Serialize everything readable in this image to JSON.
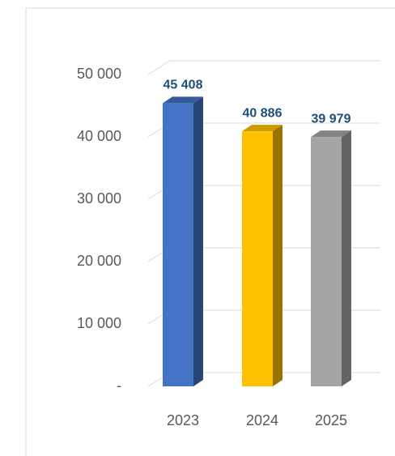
{
  "chart_data": {
    "type": "bar3d",
    "categories": [
      "2023",
      "2024",
      "2025"
    ],
    "values": [
      45408,
      40886,
      39979
    ],
    "value_labels": [
      "45 408",
      "40 886",
      "39 979"
    ],
    "colors": [
      "#4472c4",
      "#ffc000",
      "#a5a5a5"
    ],
    "value_label_color": "#1f4e79",
    "ylim": [
      0,
      50000
    ],
    "yticks": [
      {
        "value": 0,
        "label": "-"
      },
      {
        "value": 10000,
        "label": "10 000"
      },
      {
        "value": 20000,
        "label": "20 000"
      },
      {
        "value": 30000,
        "label": "30 000"
      },
      {
        "value": 40000,
        "label": "40 000"
      },
      {
        "value": 50000,
        "label": "50 000"
      }
    ],
    "grid": true
  }
}
